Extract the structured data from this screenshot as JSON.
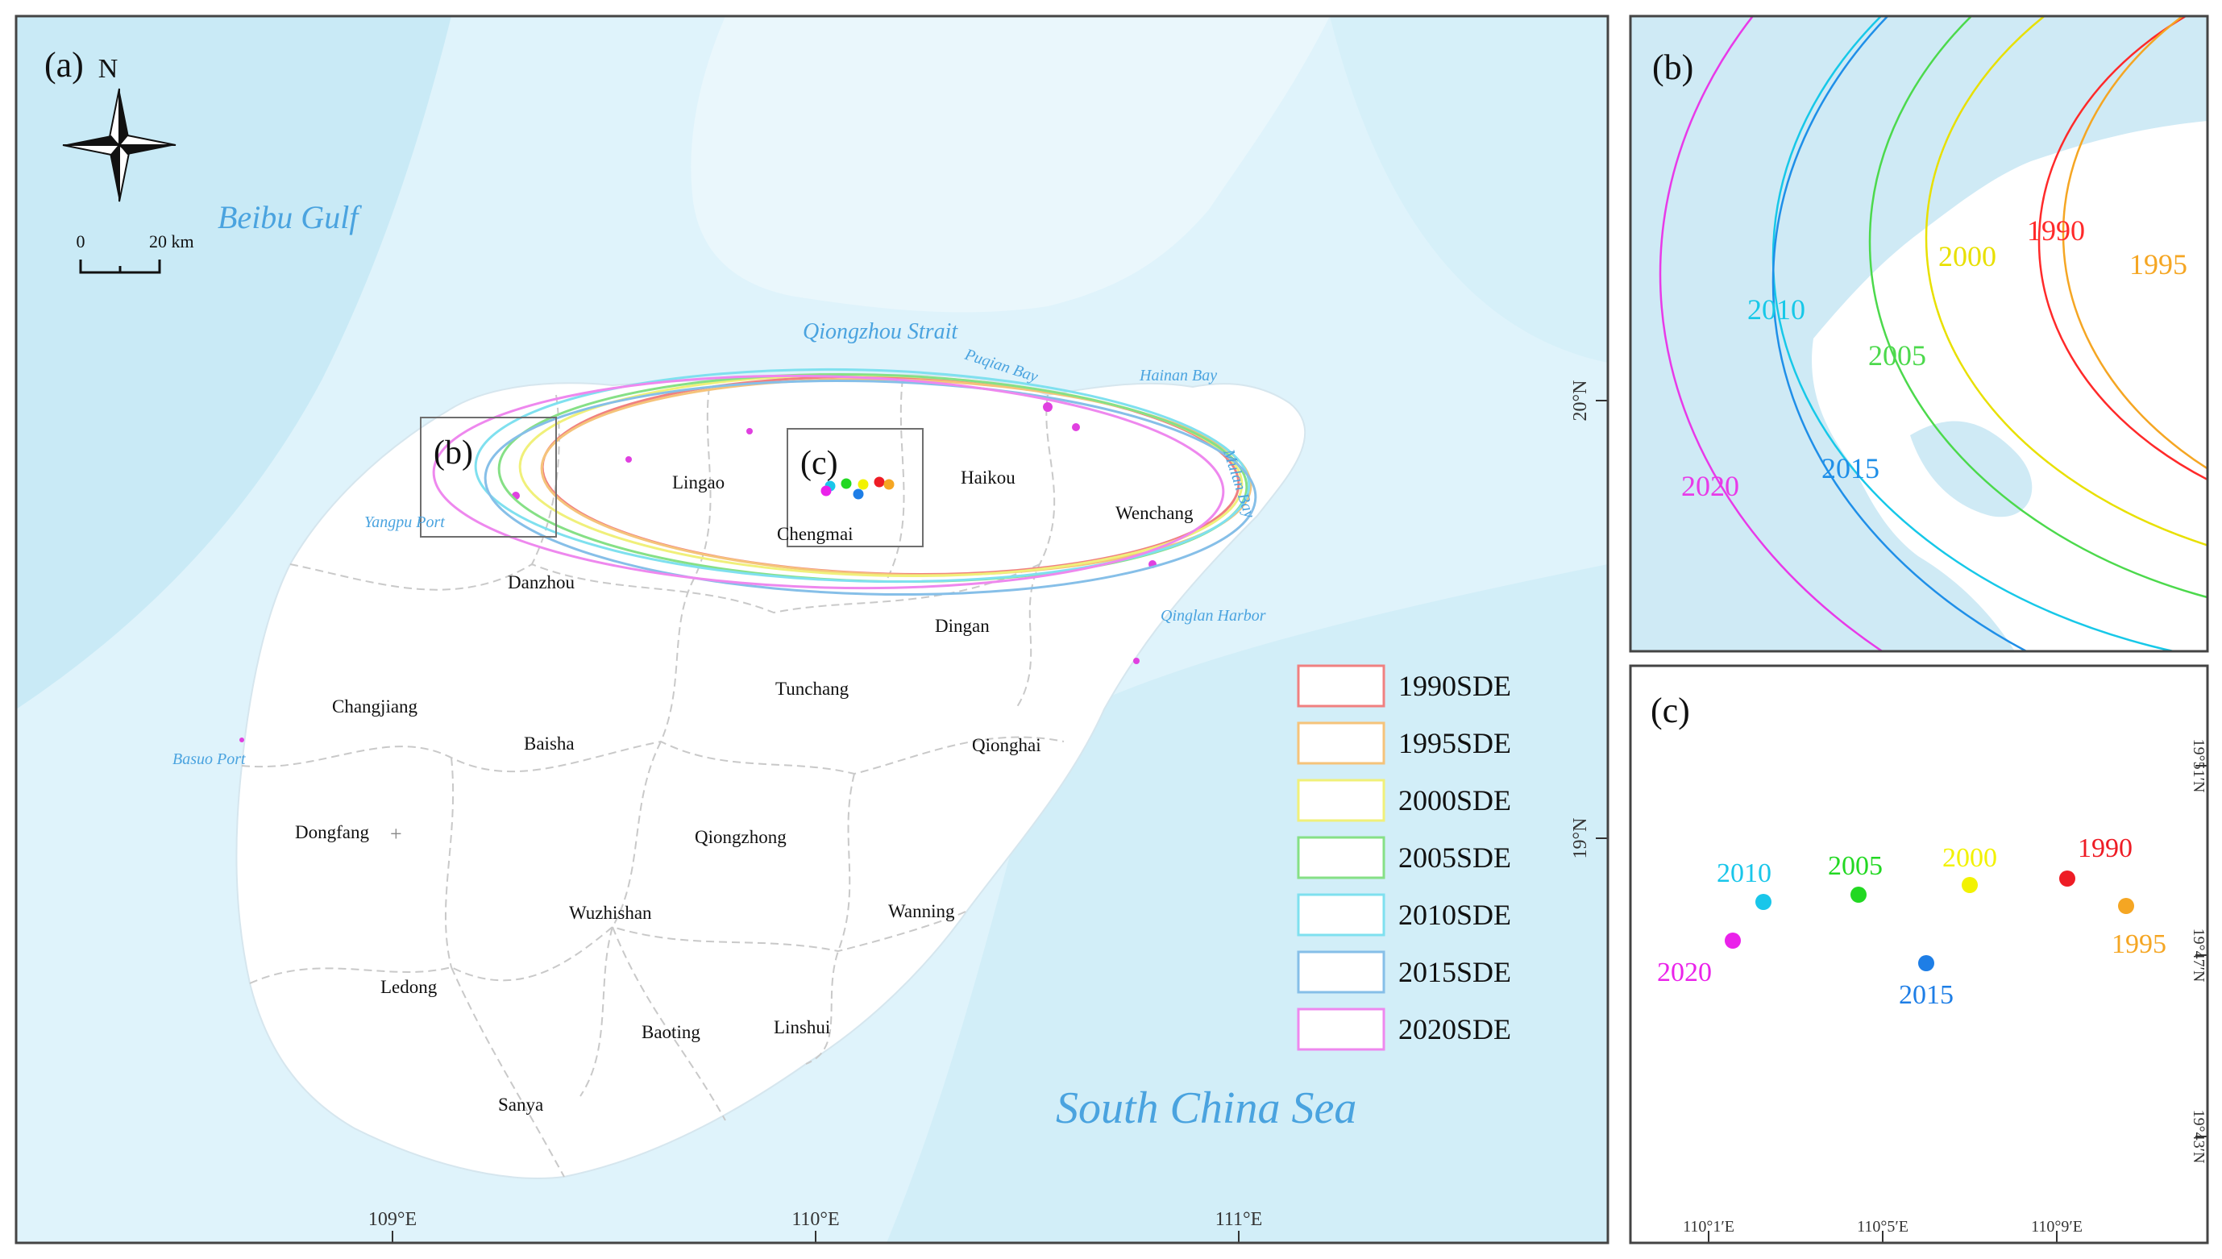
{
  "colors": {
    "sea": "#dff3fb",
    "sea_deep": "#c4e7f4",
    "land": "#ffffff",
    "water_label": "#4aa3df",
    "boundary": "#c8c8c8",
    "frame": "#444444"
  },
  "panel_a": {
    "label": "(a)",
    "north_letter": "N",
    "scale_zero": "0",
    "scale_end": "20 km",
    "sea_labels": {
      "beibu": "Beibu Gulf",
      "south_china_sea": "South China Sea",
      "qiongzhou": "Qiongzhou Strait",
      "puqian": "Puqian Bay",
      "hainan_bay": "Hainan Bay",
      "mulan": "Mulan Bay",
      "qinglan": "Qinglan Harbor",
      "yangpu": "Yangpu Port",
      "basuo": "Basuo Port"
    },
    "cities": [
      "Lingao",
      "Chengmai",
      "Haikou",
      "Wenchang",
      "Danzhou",
      "Dingan",
      "Tunchang",
      "Changjiang",
      "Baisha",
      "Qionghai",
      "Dongfang",
      "Qiongzhong",
      "Wuzhishan",
      "Wanning",
      "Ledong",
      "Baoting",
      "Linshui",
      "Sanya"
    ],
    "inset_b_label": "(b)",
    "inset_c_label": "(c)",
    "lat_labels": [
      "20°N",
      "19°N"
    ],
    "lon_labels": [
      "109°E",
      "110°E",
      "111°E"
    ],
    "legend": [
      {
        "label": "1990SDE",
        "color": "#f08080"
      },
      {
        "label": "1995SDE",
        "color": "#f5c37a"
      },
      {
        "label": "2000SDE",
        "color": "#f0f07a"
      },
      {
        "label": "2005SDE",
        "color": "#86e086"
      },
      {
        "label": "2010SDE",
        "color": "#7fe0ef"
      },
      {
        "label": "2015SDE",
        "color": "#86bfe8"
      },
      {
        "label": "2020SDE",
        "color": "#ee88ee"
      }
    ]
  },
  "panel_b": {
    "label": "(b)",
    "years": [
      {
        "year": "1990",
        "color": "#ff2a2a"
      },
      {
        "year": "1995",
        "color": "#f5a623"
      },
      {
        "year": "2000",
        "color": "#e8e000"
      },
      {
        "year": "2005",
        "color": "#4cd94c"
      },
      {
        "year": "2010",
        "color": "#17c8e8"
      },
      {
        "year": "2015",
        "color": "#1f8fe8"
      },
      {
        "year": "2020",
        "color": "#e83ae8"
      }
    ]
  },
  "panel_c": {
    "label": "(c)",
    "lat_labels": [
      "19°51′N",
      "19°47′N",
      "19°43′N"
    ],
    "lon_labels": [
      "110°1′E",
      "110°5′E",
      "110°9′E"
    ],
    "centers": [
      {
        "year": "1990",
        "color": "#ee1c25"
      },
      {
        "year": "1995",
        "color": "#f5a623"
      },
      {
        "year": "2000",
        "color": "#f2f200"
      },
      {
        "year": "2005",
        "color": "#22d822"
      },
      {
        "year": "2010",
        "color": "#19c6ea"
      },
      {
        "year": "2015",
        "color": "#1e7ee6"
      },
      {
        "year": "2020",
        "color": "#ea22ea"
      }
    ]
  }
}
